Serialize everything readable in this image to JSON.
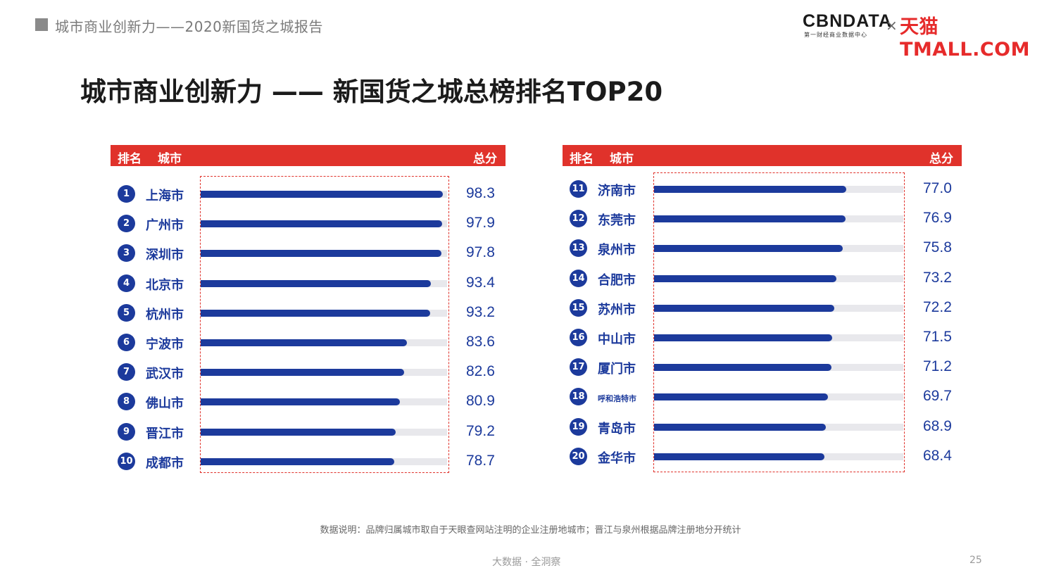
{
  "header": {
    "section_title": "城市商业创新力——2020新国货之城报告",
    "logo_cbn": "CBNDATA",
    "logo_cbn_sub": "第一财经商业数据中心",
    "logo_separator": "×",
    "logo_tmall": "天猫TMALL.COM"
  },
  "page_title": "城市商业创新力 —— 新国货之城总榜排名TOP20",
  "table_headers": {
    "rank": "排名",
    "city": "城市",
    "score": "总分"
  },
  "colors": {
    "accent_red": "#e0322b",
    "bar_blue": "#1c3a9c",
    "track_gray": "#e8e8ec"
  },
  "chart_data": {
    "type": "bar",
    "orientation": "horizontal",
    "xlim": [
      0,
      100
    ],
    "panels": [
      {
        "rows": [
          {
            "rank": "1",
            "city": "上海市",
            "value": 98.3
          },
          {
            "rank": "2",
            "city": "广州市",
            "value": 97.9
          },
          {
            "rank": "3",
            "city": "深圳市",
            "value": 97.8
          },
          {
            "rank": "4",
            "city": "北京市",
            "value": 93.4
          },
          {
            "rank": "5",
            "city": "杭州市",
            "value": 93.2
          },
          {
            "rank": "6",
            "city": "宁波市",
            "value": 83.6
          },
          {
            "rank": "7",
            "city": "武汉市",
            "value": 82.6
          },
          {
            "rank": "8",
            "city": "佛山市",
            "value": 80.9
          },
          {
            "rank": "9",
            "city": "晋江市",
            "value": 79.2
          },
          {
            "rank": "10",
            "city": "成都市",
            "value": 78.7
          }
        ]
      },
      {
        "rows": [
          {
            "rank": "11",
            "city": "济南市",
            "value": 77.0
          },
          {
            "rank": "12",
            "city": "东莞市",
            "value": 76.9
          },
          {
            "rank": "13",
            "city": "泉州市",
            "value": 75.8
          },
          {
            "rank": "14",
            "city": "合肥市",
            "value": 73.2
          },
          {
            "rank": "15",
            "city": "苏州市",
            "value": 72.2
          },
          {
            "rank": "16",
            "city": "中山市",
            "value": 71.5
          },
          {
            "rank": "17",
            "city": "厦门市",
            "value": 71.2
          },
          {
            "rank": "18",
            "city": "呼和浩特市",
            "value": 69.7
          },
          {
            "rank": "19",
            "city": "青岛市",
            "value": 68.9
          },
          {
            "rank": "20",
            "city": "金华市",
            "value": 68.4
          }
        ]
      }
    ]
  },
  "footnote": "数据说明：品牌归属城市取自于天眼查网站注明的企业注册地城市；晋江与泉州根据品牌注册地分开统计",
  "footer": {
    "tagline": "大数据 · 全洞察",
    "page_number": "25"
  }
}
